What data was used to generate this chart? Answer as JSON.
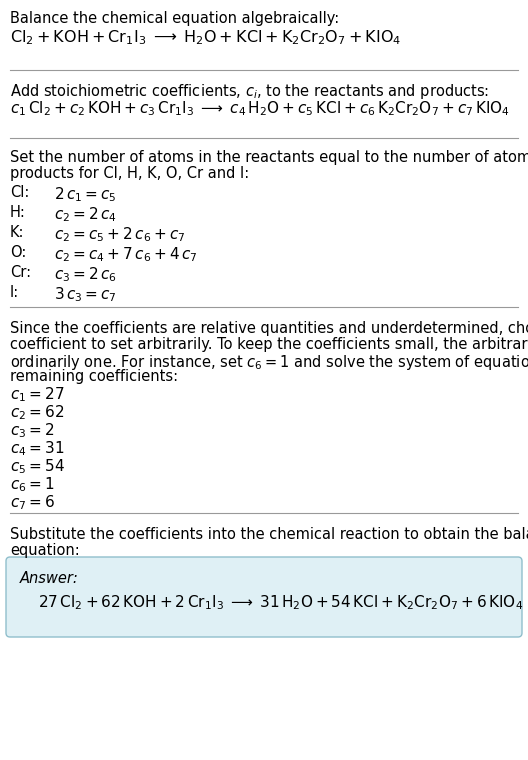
{
  "bg_color": "#ffffff",
  "text_color": "#000000",
  "answer_box_color": "#dff0f5",
  "answer_box_edge": "#90bfcc",
  "section1_title": "Balance the chemical equation algebraically:",
  "section1_eq": "$\\mathrm{Cl_2 + KOH + Cr_1I_3 \\;\\longrightarrow\\; H_2O + KCl + K_2Cr_2O_7 + KIO_4}$",
  "section2_title": "Add stoichiometric coefficients, $c_i$, to the reactants and products:",
  "section2_eq": "$c_1\\,\\mathrm{Cl_2} + c_2\\,\\mathrm{KOH} + c_3\\,\\mathrm{Cr_1I_3} \\;\\longrightarrow\\; c_4\\,\\mathrm{H_2O} + c_5\\,\\mathrm{KCl} + c_6\\,\\mathrm{K_2Cr_2O_7} + c_7\\,\\mathrm{KIO_4}$",
  "section3_title_line1": "Set the number of atoms in the reactants equal to the number of atoms in the",
  "section3_title_line2": "products for Cl, H, K, O, Cr and I:",
  "equations": [
    [
      "Cl:",
      "$2\\,c_1 = c_5$"
    ],
    [
      "H:",
      "$c_2 = 2\\,c_4$"
    ],
    [
      "K:",
      "$c_2 = c_5 + 2\\,c_6 + c_7$"
    ],
    [
      "O:",
      "$c_2 = c_4 + 7\\,c_6 + 4\\,c_7$"
    ],
    [
      "Cr:",
      "$c_3 = 2\\,c_6$"
    ],
    [
      "I:",
      "$3\\,c_3 = c_7$"
    ]
  ],
  "section4_line1": "Since the coefficients are relative quantities and underdetermined, choose a",
  "section4_line2": "coefficient to set arbitrarily. To keep the coefficients small, the arbitrary value is",
  "section4_line3": "ordinarily one. For instance, set $c_6 = 1$ and solve the system of equations for the",
  "section4_line4": "remaining coefficients:",
  "coefficients": [
    "$c_1 = 27$",
    "$c_2 = 62$",
    "$c_3 = 2$",
    "$c_4 = 31$",
    "$c_5 = 54$",
    "$c_6 = 1$",
    "$c_7 = 6$"
  ],
  "section5_line1": "Substitute the coefficients into the chemical reaction to obtain the balanced",
  "section5_line2": "equation:",
  "answer_label": "Answer:",
  "answer_eq": "$27\\,\\mathrm{Cl_2} + 62\\,\\mathrm{KOH} + 2\\,\\mathrm{Cr_1I_3} \\;\\longrightarrow\\; 31\\,\\mathrm{H_2O} + 54\\,\\mathrm{KCl} + \\mathrm{K_2Cr_2O_7} + 6\\,\\mathrm{KIO_4}$"
}
